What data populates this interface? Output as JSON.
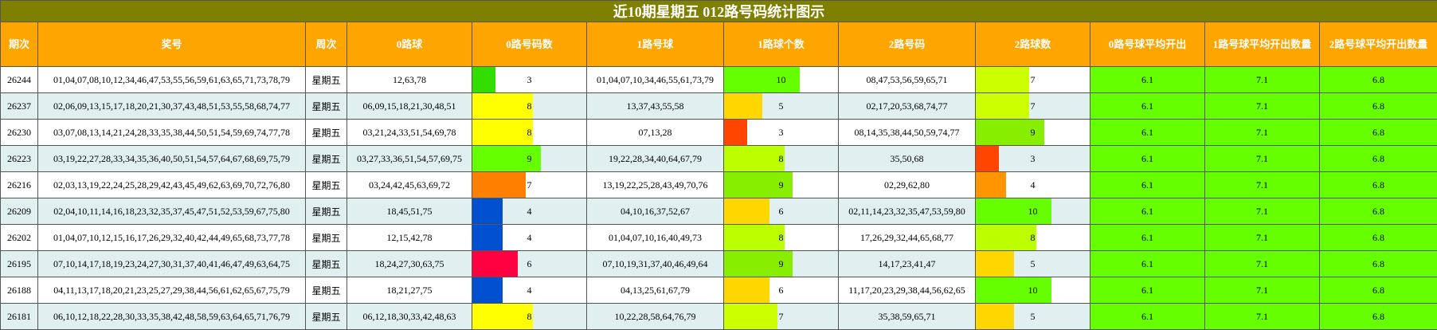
{
  "title": "近10期星期五 012路号码统计图示",
  "headers": [
    "期次",
    "奖号",
    "周次",
    "0路球",
    "0路号码数",
    "1路号球",
    "1路球个数",
    "2路号码",
    "2路球数",
    "0路号球平均开出",
    "1路号球平均开出数量",
    "2路号球平均开出数量"
  ],
  "bar_max": 15,
  "rows": [
    {
      "period": "26244",
      "numbers": "01,04,07,08,10,12,34,46,47,53,55,56,59,61,63,65,71,73,78,79",
      "weekday": "星期五",
      "r0": "12,63,78",
      "c0": 3,
      "c0color": "#33DD00",
      "r1": "01,04,07,10,34,46,55,61,73,79",
      "c1": 10,
      "c1color": "#66FF00",
      "r2": "08,47,53,56,59,65,71",
      "c2": 7,
      "c2color": "#CCFF00",
      "a0": "6.1",
      "a1": "7.1",
      "a2": "6.8"
    },
    {
      "period": "26237",
      "numbers": "02,06,09,13,15,17,18,20,21,30,37,43,48,51,53,55,58,68,74,77",
      "weekday": "星期五",
      "r0": "06,09,15,18,21,30,48,51",
      "c0": 8,
      "c0color": "#FFFF00",
      "r1": "13,37,43,55,58",
      "c1": 5,
      "c1color": "#FFD700",
      "r2": "02,17,20,53,68,74,77",
      "c2": 7,
      "c2color": "#CCFF00",
      "a0": "6.1",
      "a1": "7.1",
      "a2": "6.8"
    },
    {
      "period": "26230",
      "numbers": "03,07,08,13,14,21,24,28,33,35,38,44,50,51,54,59,69,74,77,78",
      "weekday": "星期五",
      "r0": "03,21,24,33,51,54,69,78",
      "c0": 8,
      "c0color": "#FFFF00",
      "r1": "07,13,28",
      "c1": 3,
      "c1color": "#FF4500",
      "r2": "08,14,35,38,44,50,59,74,77",
      "c2": 9,
      "c2color": "#88EE00",
      "a0": "6.1",
      "a1": "7.1",
      "a2": "6.8"
    },
    {
      "period": "26223",
      "numbers": "03,19,22,27,28,33,34,35,36,40,50,51,54,57,64,67,68,69,75,79",
      "weekday": "星期五",
      "r0": "03,27,33,36,51,54,57,69,75",
      "c0": 9,
      "c0color": "#66FF00",
      "r1": "19,22,28,34,40,64,67,79",
      "c1": 8,
      "c1color": "#BBFF00",
      "r2": "35,50,68",
      "c2": 3,
      "c2color": "#FF4500",
      "a0": "6.1",
      "a1": "7.1",
      "a2": "6.8"
    },
    {
      "period": "26216",
      "numbers": "02,03,13,19,22,24,25,28,29,42,43,45,49,62,63,69,70,72,76,80",
      "weekday": "星期五",
      "r0": "03,24,42,45,63,69,72",
      "c0": 7,
      "c0color": "#FF7F00",
      "r1": "13,19,22,25,28,43,49,70,76",
      "c1": 9,
      "c1color": "#88EE00",
      "r2": "02,29,62,80",
      "c2": 4,
      "c2color": "#FF9500",
      "a0": "6.1",
      "a1": "7.1",
      "a2": "6.8"
    },
    {
      "period": "26209",
      "numbers": "02,04,10,11,14,16,18,23,32,35,37,45,47,51,52,53,59,67,75,80",
      "weekday": "星期五",
      "r0": "18,45,51,75",
      "c0": 4,
      "c0color": "#0050D0",
      "r1": "04,10,16,37,52,67",
      "c1": 6,
      "c1color": "#FFD700",
      "r2": "02,11,14,23,32,35,47,53,59,80",
      "c2": 10,
      "c2color": "#66FF00",
      "a0": "6.1",
      "a1": "7.1",
      "a2": "6.8"
    },
    {
      "period": "26202",
      "numbers": "01,04,07,10,12,15,16,17,26,29,32,40,42,44,49,65,68,73,77,78",
      "weekday": "星期五",
      "r0": "12,15,42,78",
      "c0": 4,
      "c0color": "#0050D0",
      "r1": "01,04,07,10,16,40,49,73",
      "c1": 8,
      "c1color": "#BBFF00",
      "r2": "17,26,29,32,44,65,68,77",
      "c2": 8,
      "c2color": "#BBFF00",
      "a0": "6.1",
      "a1": "7.1",
      "a2": "6.8"
    },
    {
      "period": "26195",
      "numbers": "07,10,14,17,18,19,23,24,27,30,31,37,40,41,46,47,49,63,64,75",
      "weekday": "星期五",
      "r0": "18,24,27,30,63,75",
      "c0": 6,
      "c0color": "#FF0040",
      "r1": "07,10,19,31,37,40,46,49,64",
      "c1": 9,
      "c1color": "#88EE00",
      "r2": "14,17,23,41,47",
      "c2": 5,
      "c2color": "#FFD700",
      "a0": "6.1",
      "a1": "7.1",
      "a2": "6.8"
    },
    {
      "period": "26188",
      "numbers": "04,11,13,17,18,20,21,23,25,27,29,38,44,56,61,62,65,67,75,79",
      "weekday": "星期五",
      "r0": "18,21,27,75",
      "c0": 4,
      "c0color": "#0050D0",
      "r1": "04,13,25,61,67,79",
      "c1": 6,
      "c1color": "#FFD700",
      "r2": "11,17,20,23,29,38,44,56,62,65",
      "c2": 10,
      "c2color": "#66FF00",
      "a0": "6.1",
      "a1": "7.1",
      "a2": "6.8"
    },
    {
      "period": "26181",
      "numbers": "06,10,12,18,22,28,30,33,35,38,42,48,58,59,63,64,65,71,76,79",
      "weekday": "星期五",
      "r0": "06,12,18,30,33,42,48,63",
      "c0": 8,
      "c0color": "#FFFF00",
      "r1": "10,22,28,58,64,76,79",
      "c1": 7,
      "c1color": "#CCFF00",
      "r2": "35,38,59,65,71",
      "c2": 5,
      "c2color": "#FFD700",
      "a0": "6.1",
      "a1": "7.1",
      "a2": "6.8"
    }
  ]
}
